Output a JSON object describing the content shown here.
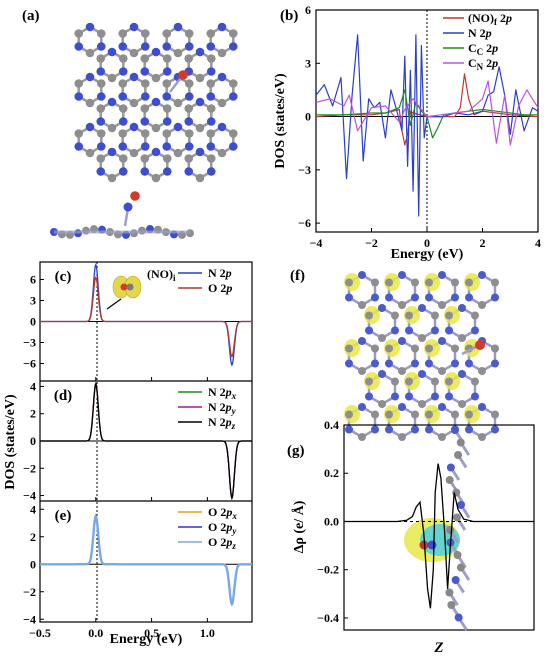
{
  "panels": {
    "a": {
      "label": "(a)"
    },
    "f": {
      "label": "(f)"
    }
  },
  "chart_data": [
    {
      "id": "b",
      "panel_label": "(b)",
      "type": "line",
      "xlabel": "Energy (eV)",
      "ylabel": "DOS (states/eV)",
      "xlim": [
        -4,
        4
      ],
      "ylim": [
        -6.5,
        6
      ],
      "xticks": [
        -4,
        -2,
        0,
        2,
        4
      ],
      "yticks": [
        -6,
        -3,
        0,
        3,
        6
      ],
      "legend_position": "top-right",
      "series": [
        {
          "name": "(NO)f 2p",
          "color": "#c0392b",
          "x": [
            -4.0,
            -3.5,
            -3.0,
            -2.5,
            -2.0,
            -1.5,
            -1.0,
            -0.9,
            -0.8,
            -0.7,
            -0.6,
            -0.5,
            0.0,
            0.5,
            1.0,
            1.2,
            1.35,
            1.5,
            1.7,
            2.0,
            2.5,
            3.0,
            3.5,
            4.0
          ],
          "y": [
            0,
            0.05,
            0.1,
            0.1,
            0.1,
            0.2,
            0.4,
            -0.8,
            -1.6,
            -1.0,
            0.3,
            0.2,
            0,
            0,
            0,
            0.5,
            2.4,
            1.0,
            0.1,
            0.3,
            0.2,
            0.1,
            0.05,
            0
          ]
        },
        {
          "name": "N 2p",
          "color": "#2a3fc8",
          "x": [
            -4.0,
            -3.7,
            -3.4,
            -3.1,
            -2.9,
            -2.7,
            -2.5,
            -2.3,
            -2.1,
            -1.9,
            -1.7,
            -1.5,
            -1.3,
            -1.1,
            -0.9,
            -0.8,
            -0.7,
            -0.6,
            -0.5,
            -0.4,
            -0.3,
            -0.2,
            -0.1,
            0.0,
            0.3,
            0.6,
            1.0,
            1.5,
            2.0,
            2.2,
            2.4,
            2.6,
            2.8,
            3.0,
            3.2,
            3.5,
            3.8,
            4.0
          ],
          "y": [
            1.2,
            1.8,
            0.6,
            2.2,
            -3.5,
            1.2,
            4.6,
            -2.5,
            1.0,
            0.5,
            0.8,
            -1.2,
            1.5,
            0.4,
            -0.8,
            3.4,
            -2.8,
            2.6,
            -4.2,
            4.6,
            -5.6,
            4.0,
            -1.2,
            0,
            0,
            0,
            0.2,
            0.1,
            0.3,
            1.2,
            1.4,
            2.8,
            1.2,
            -1.0,
            1.5,
            -0.8,
            0.5,
            0.3
          ]
        },
        {
          "name": "Cc 2p",
          "color": "#1e8c1e",
          "x": [
            -4.0,
            -3.0,
            -2.0,
            -1.5,
            -1.0,
            -0.8,
            -0.6,
            -0.4,
            -0.2,
            0.0,
            0.2,
            0.4,
            0.6,
            1.0,
            1.5,
            2.0,
            2.5,
            3.0,
            3.5,
            4.0
          ],
          "y": [
            0.1,
            0.1,
            0.2,
            0.2,
            0.5,
            1.5,
            -0.5,
            0.8,
            0.3,
            0,
            -1.2,
            -0.6,
            0.1,
            0.2,
            0.3,
            0.4,
            0.3,
            0.2,
            0.1,
            0.1
          ]
        },
        {
          "name": "CN 2p",
          "color": "#c050e0",
          "x": [
            -4.0,
            -3.5,
            -3.0,
            -2.8,
            -2.5,
            -2.0,
            -1.5,
            -1.0,
            -0.8,
            -0.5,
            0.0,
            0.5,
            1.0,
            1.5,
            2.0,
            2.2,
            2.5,
            2.8,
            3.0,
            3.3,
            3.6,
            4.0
          ],
          "y": [
            0.8,
            1.0,
            0.6,
            1.2,
            -0.8,
            0.5,
            0.6,
            -0.3,
            0.4,
            1.0,
            0,
            0.1,
            0.2,
            0.3,
            1.0,
            2.0,
            -1.5,
            1.2,
            -1.6,
            0.6,
            1.5,
            0.5
          ]
        }
      ]
    },
    {
      "id": "c",
      "panel_label": "(c)",
      "type": "line",
      "inset_label": "(NO)i",
      "xlim": [
        -0.5,
        1.4
      ],
      "ylim": [
        -8.5,
        8.5
      ],
      "yticks": [
        -6,
        -3,
        0,
        3,
        6
      ],
      "legend_position": "top-right",
      "series": [
        {
          "name": "N 2p",
          "color": "#2a3fc8",
          "peaks": [
            {
              "x": 0.0,
              "y": 8.1,
              "w": 0.022
            },
            {
              "x": 1.22,
              "y": -6.2,
              "w": 0.022
            }
          ]
        },
        {
          "name": "O 2p",
          "color": "#b03a2e",
          "peaks": [
            {
              "x": 0.0,
              "y": 6.3,
              "w": 0.022
            },
            {
              "x": 1.22,
              "y": -5.0,
              "w": 0.022
            }
          ]
        }
      ]
    },
    {
      "id": "d",
      "panel_label": "(d)",
      "type": "line",
      "xlim": [
        -0.5,
        1.4
      ],
      "ylim": [
        -4.4,
        4.4
      ],
      "yticks": [
        -4,
        -2,
        0,
        2,
        4
      ],
      "legend_position": "top-right",
      "series": [
        {
          "name": "N 2px",
          "color": "#1e8c1e",
          "peaks": [
            {
              "x": 0.0,
              "y": 4.1,
              "w": 0.022
            },
            {
              "x": 1.22,
              "y": -4.1,
              "w": 0.022
            }
          ]
        },
        {
          "name": "N 2py",
          "color": "#b010a0",
          "peaks": [
            {
              "x": 0.0,
              "y": 4.15,
              "w": 0.022
            },
            {
              "x": 1.22,
              "y": -4.15,
              "w": 0.022
            }
          ]
        },
        {
          "name": "N 2pz",
          "color": "#000000",
          "peaks": [
            {
              "x": 0.0,
              "y": 4.2,
              "w": 0.022
            },
            {
              "x": 1.22,
              "y": -4.2,
              "w": 0.022
            }
          ]
        }
      ]
    },
    {
      "id": "e",
      "panel_label": "(e)",
      "type": "line",
      "xlabel": "Energy (eV)",
      "xlim": [
        -0.5,
        1.4
      ],
      "ylim": [
        -4.2,
        4.6
      ],
      "xticks": [
        -0.5,
        0.0,
        0.5,
        1.0
      ],
      "yticks": [
        -4,
        -2,
        0,
        2,
        4
      ],
      "legend_position": "top-right",
      "series": [
        {
          "name": "O 2px",
          "color": "#e0a020",
          "peaks": [
            {
              "x": 0.0,
              "y": 3.3,
              "w": 0.022
            },
            {
              "x": 1.22,
              "y": -2.8,
              "w": 0.022
            }
          ]
        },
        {
          "name": "O 2py",
          "color": "#3a2ad8",
          "peaks": [
            {
              "x": 0.0,
              "y": 3.4,
              "w": 0.022
            },
            {
              "x": 1.22,
              "y": -2.85,
              "w": 0.022
            }
          ]
        },
        {
          "name": "O 2pz",
          "color": "#78a8e8",
          "peaks": [
            {
              "x": 0.0,
              "y": 3.5,
              "w": 0.022
            },
            {
              "x": 1.22,
              "y": -2.9,
              "w": 0.022
            }
          ]
        }
      ]
    },
    {
      "id": "g",
      "panel_label": "(g)",
      "type": "line",
      "xlabel": "Z",
      "ylabel": "Δρ (e/ Å)",
      "xlim": [
        0,
        10
      ],
      "ylim": [
        -0.45,
        0.4
      ],
      "yticks": [
        -0.4,
        -0.2,
        0.0,
        0.2,
        0.4
      ],
      "series": [
        {
          "name": "",
          "color": "#000000",
          "x": [
            0.0,
            2.8,
            3.3,
            3.6,
            3.8,
            4.0,
            4.2,
            4.4,
            4.55,
            4.7,
            4.8,
            4.95,
            5.1,
            5.3,
            5.45,
            5.6,
            5.8,
            6.0,
            6.3,
            6.8,
            10.0
          ],
          "y": [
            0,
            0,
            0.005,
            0.02,
            0.06,
            0.08,
            -0.05,
            -0.28,
            -0.36,
            -0.2,
            0.12,
            0.24,
            0.18,
            -0.05,
            -0.28,
            -0.1,
            0.12,
            0.05,
            0.01,
            0,
            0
          ]
        }
      ]
    }
  ],
  "shared_ylabel_cde": "DOS (states/eV)"
}
